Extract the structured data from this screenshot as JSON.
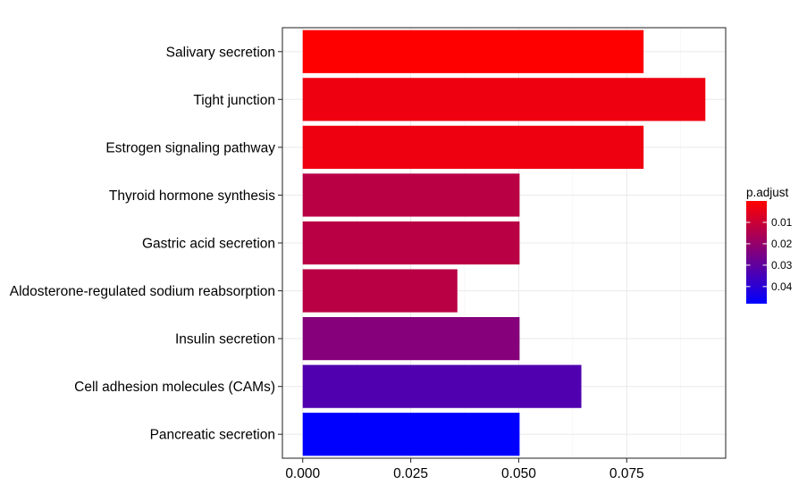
{
  "chart_data": {
    "type": "bar",
    "orientation": "horizontal",
    "categories": [
      "Salivary secretion",
      "Tight junction",
      "Estrogen signaling pathway",
      "Thyroid hormone synthesis",
      "Gastric acid secretion",
      "Aldosterone-regulated sodium reabsorption",
      "Insulin secretion",
      "Cell adhesion molecules (CAMs)",
      "Pancreatic secretion"
    ],
    "values": [
      0.0789,
      0.0932,
      0.0789,
      0.0502,
      0.0502,
      0.0358,
      0.0502,
      0.0645,
      0.0502
    ],
    "p_adjust": [
      0.0,
      0.003,
      0.003,
      0.013,
      0.013,
      0.013,
      0.023,
      0.033,
      0.048
    ],
    "xlim": [
      -0.0047,
      0.0979
    ],
    "x_ticks": [
      0.0,
      0.025,
      0.05,
      0.075
    ],
    "x_tick_labels": [
      "0.000",
      "0.025",
      "0.050",
      "0.075"
    ],
    "grid": true,
    "legend": {
      "title": "p.adjust",
      "position": "right",
      "range": [
        0.0,
        0.048
      ],
      "ticks": [
        0.01,
        0.02,
        0.03,
        0.04
      ],
      "tick_labels": [
        "0.01",
        "0.02",
        "0.03",
        "0.04"
      ],
      "color_low": "#ff0000",
      "color_high": "#0000ff"
    }
  }
}
